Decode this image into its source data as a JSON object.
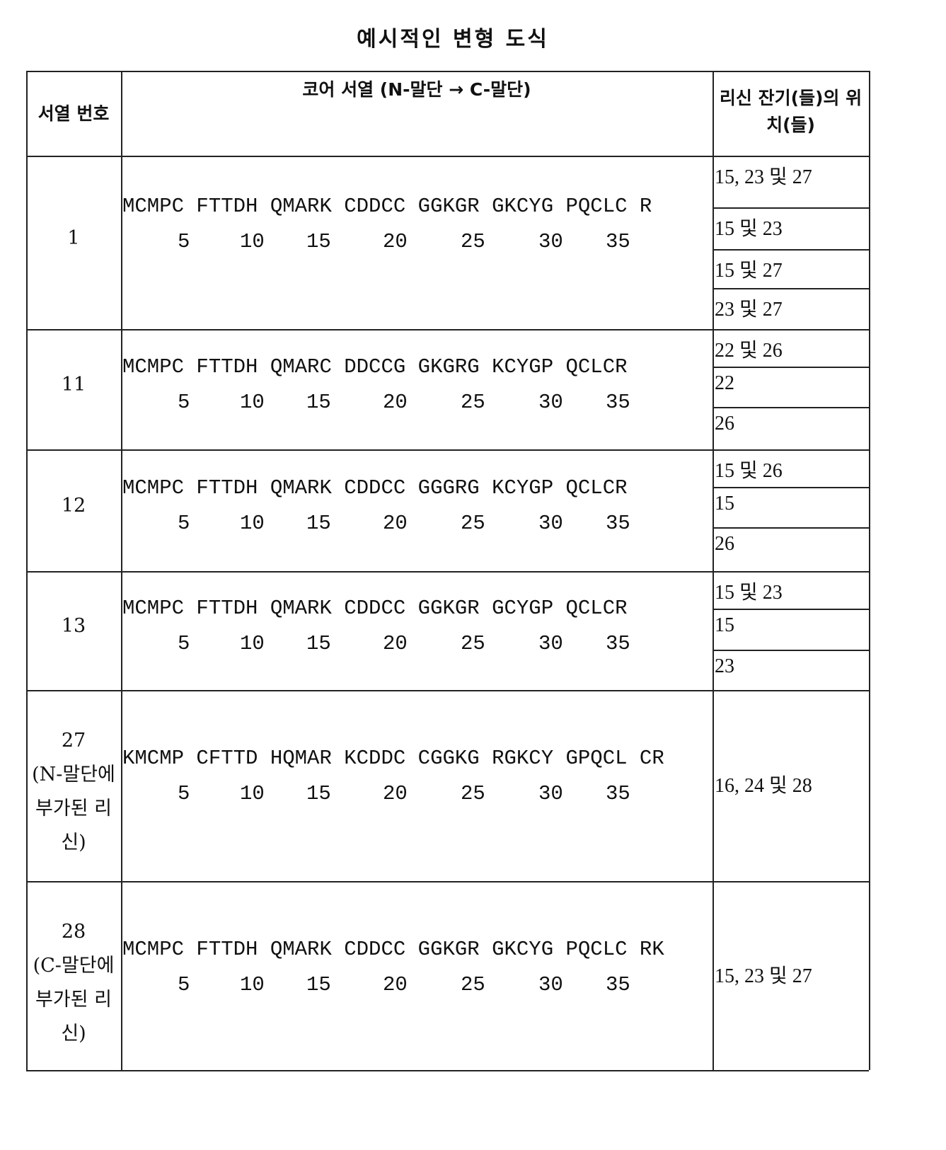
{
  "title": "예시적인 변형 도식",
  "headers": {
    "seq_no": "서열 번호",
    "core": "코어 서열 (N-말단 → C-말단)",
    "lysine": "리신 잔기(들)의 위치(들)"
  },
  "numbering": [
    "5",
    "10",
    "15",
    "20",
    "25",
    "30",
    "35"
  ],
  "rows": [
    {
      "id": "1",
      "note": "",
      "sequence": "MCMPC FTTDH QMARK CDDCC GGKGR GKCYG PQCLC R",
      "positions": [
        "15, 23 및 27",
        "15 및 23",
        "15 및 27",
        "23 및 27"
      ]
    },
    {
      "id": "11",
      "note": "",
      "sequence": "MCMPC FTTDH QMARC DDCCG GKGRG KCYGP QCLCR",
      "positions": [
        "22 및 26",
        "22",
        "26"
      ]
    },
    {
      "id": "12",
      "note": "",
      "sequence": "MCMPC FTTDH QMARK CDDCC GGGRG KCYGP QCLCR",
      "positions": [
        "15 및 26",
        "15",
        "26"
      ]
    },
    {
      "id": "13",
      "note": "",
      "sequence": "MCMPC FTTDH QMARK CDDCC GGKGR GCYGP QCLCR",
      "positions": [
        "15 및 23",
        "15",
        "23"
      ]
    },
    {
      "id": "27",
      "note": "(N-말단에 부가된 리신)",
      "sequence": "KMCMP CFTTD HQMAR KCDDC CGGKG RGKCY GPQCL CR",
      "positions": [
        "16, 24 및 28"
      ]
    },
    {
      "id": "28",
      "note": "(C-말단에 부가된 리신)",
      "sequence": "MCMPC FTTDH QMARK CDDCC GGKGR GKCYG PQCLC RK",
      "positions": [
        "15, 23 및 27"
      ]
    }
  ]
}
